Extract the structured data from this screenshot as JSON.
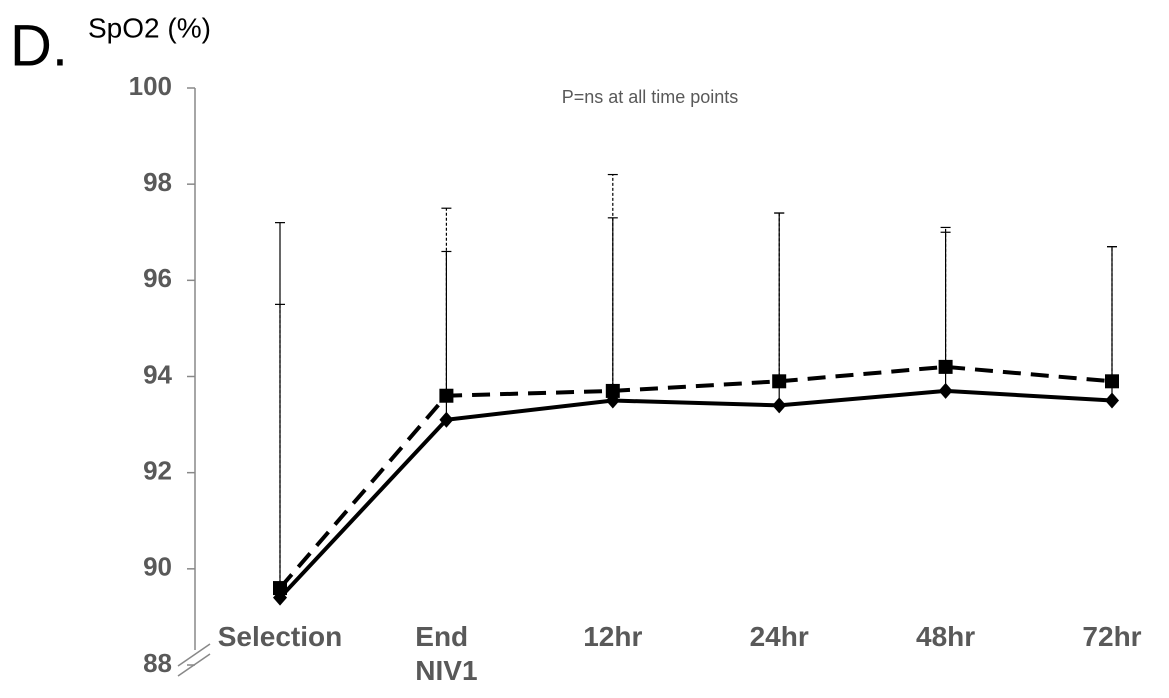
{
  "chart_data": {
    "type": "line",
    "panel_label": "D.",
    "title": "SpO2 (%)",
    "annotation": "P=ns at all time points",
    "categories": [
      "Selection",
      "End NIV1",
      "12hr",
      "24hr",
      "48hr",
      "72hr"
    ],
    "series": [
      {
        "color": "#000000",
        "line_style": "solid",
        "marker": "diamond",
        "values": [
          89.4,
          93.1,
          93.5,
          93.4,
          93.7,
          93.5
        ],
        "errors": [
          7.8,
          3.5,
          3.8,
          4.0,
          3.3,
          3.2
        ]
      },
      {
        "color": "#000000",
        "line_style": "dashed",
        "marker": "square",
        "values": [
          89.6,
          93.6,
          93.7,
          93.9,
          94.2,
          93.9
        ],
        "errors": [
          5.9,
          3.9,
          4.5,
          3.5,
          2.9,
          2.8
        ]
      }
    ],
    "ylim": [
      88,
      100
    ],
    "yticks": [
      88,
      90,
      92,
      94,
      96,
      98,
      100
    ],
    "grid": false
  }
}
